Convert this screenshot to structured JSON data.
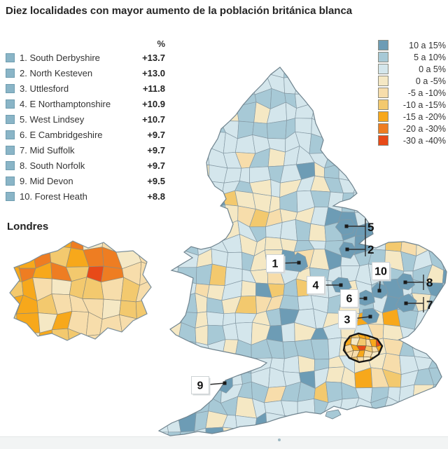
{
  "title": "Diez localidades con mayor aumento de la población británica blanca",
  "ranking": {
    "header_percent": "%",
    "bullet_color": "#8ab5c7",
    "bullet_border": "#6f9db0",
    "items": [
      {
        "label": "1. South Derbyshire",
        "value": "+13.7"
      },
      {
        "label": "2. North Kesteven",
        "value": "+13.0"
      },
      {
        "label": "3. Uttlesford",
        "value": "+11.8"
      },
      {
        "label": "4. E Northamptonshire",
        "value": "+10.9"
      },
      {
        "label": "5. West Lindsey",
        "value": "+10.7"
      },
      {
        "label": "6. E Cambridgeshire",
        "value": "+9.7"
      },
      {
        "label": "7. Mid Suffolk",
        "value": "+9.7"
      },
      {
        "label": "8. South Norfolk",
        "value": "+9.7"
      },
      {
        "label": "9. Mid Devon",
        "value": "+9.5"
      },
      {
        "label": "10. Forest Heath",
        "value": "+8.8"
      }
    ]
  },
  "legend": {
    "items": [
      {
        "label": "10 a 15%",
        "color": "#6d9cb5"
      },
      {
        "label": "5 a 10%",
        "color": "#a7c9d6"
      },
      {
        "label": "0 a 5%",
        "color": "#d4e6ec"
      },
      {
        "label": "0 a -5%",
        "color": "#f5e8c4"
      },
      {
        "label": "-5 a -10%",
        "color": "#f7ddab"
      },
      {
        "label": "-10 a -15%",
        "color": "#f3c96e"
      },
      {
        "label": "-15 a -20%",
        "color": "#f7a81b"
      },
      {
        "label": "-20 a -30%",
        "color": "#ee7d22"
      },
      {
        "label": "-30 a -40%",
        "color": "#e84a18"
      }
    ]
  },
  "inset": {
    "label": "Londres"
  },
  "map": {
    "callouts": [
      {
        "label": "1"
      },
      {
        "label": "2"
      },
      {
        "label": "3"
      },
      {
        "label": "4"
      },
      {
        "label": "5"
      },
      {
        "label": "6"
      },
      {
        "label": "7"
      },
      {
        "label": "8"
      },
      {
        "label": "9"
      },
      {
        "label": "10"
      }
    ]
  }
}
